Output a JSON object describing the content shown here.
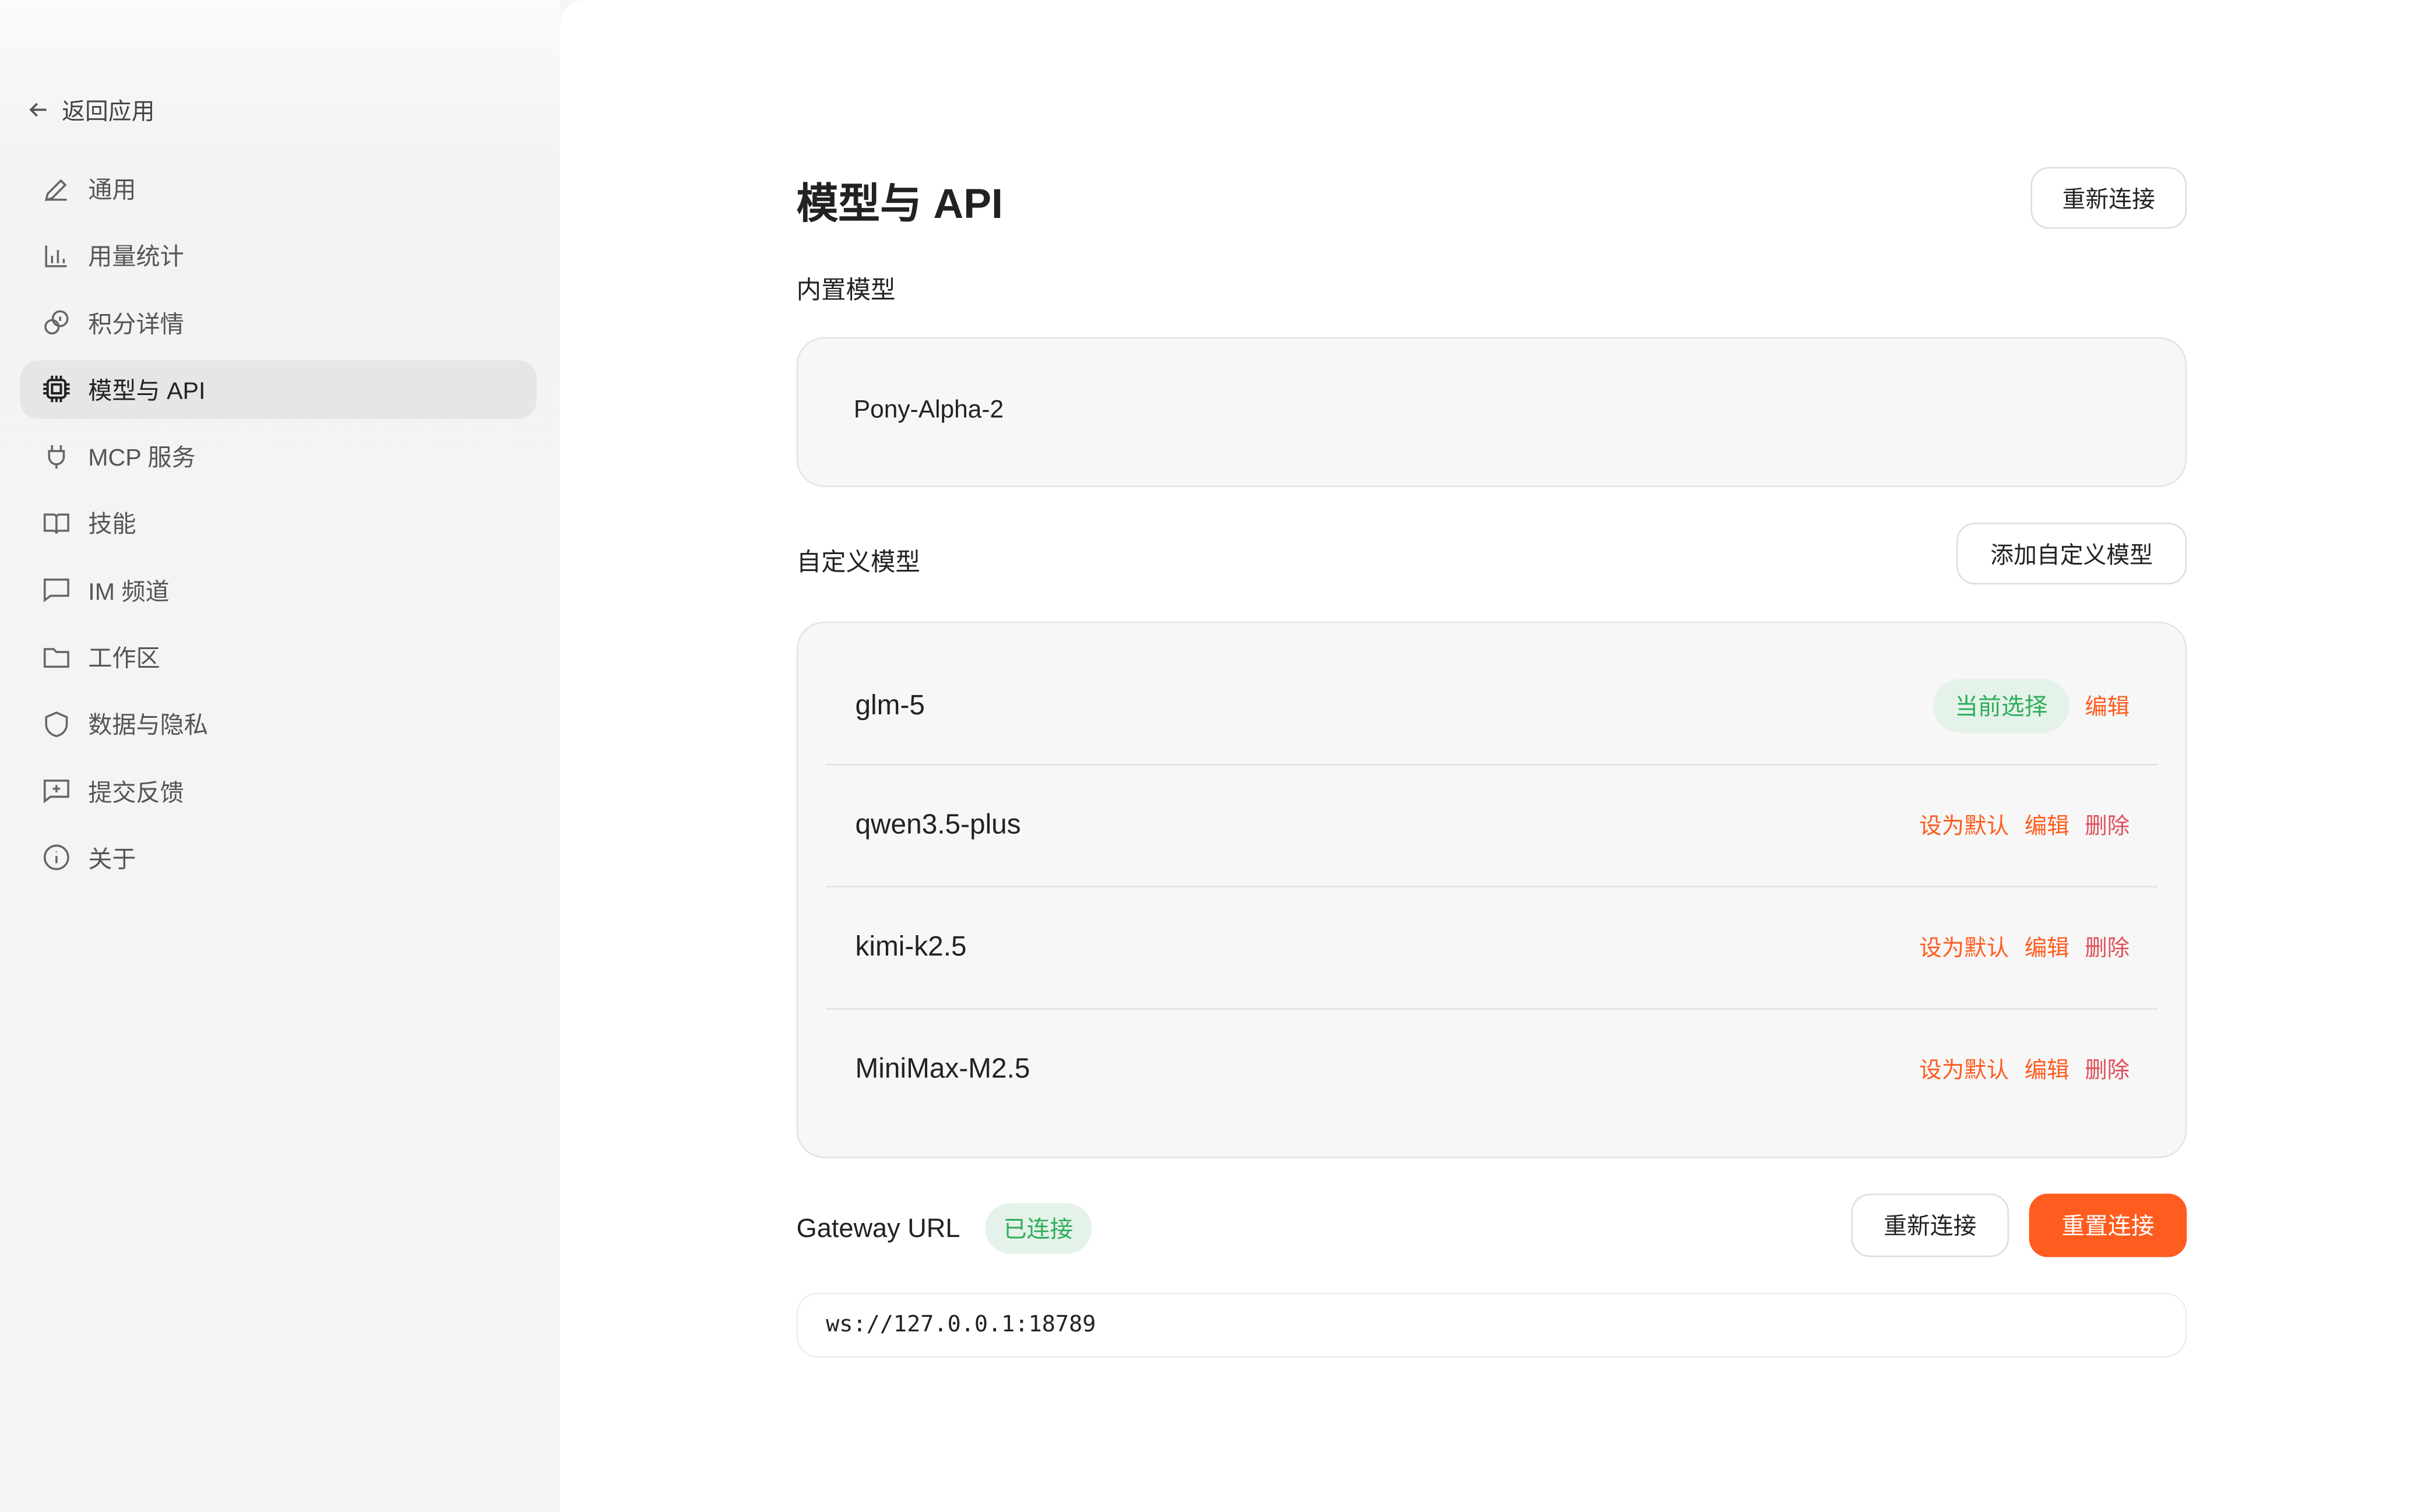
{
  "sidebar": {
    "back_label": "返回应用",
    "items": [
      {
        "label": "通用",
        "icon": "pencil-icon"
      },
      {
        "label": "用量统计",
        "icon": "bar-chart-icon"
      },
      {
        "label": "积分详情",
        "icon": "coins-icon"
      },
      {
        "label": "模型与 API",
        "icon": "cpu-icon",
        "active": true
      },
      {
        "label": "MCP 服务",
        "icon": "plug-icon"
      },
      {
        "label": "技能",
        "icon": "book-icon"
      },
      {
        "label": "IM 频道",
        "icon": "message-icon"
      },
      {
        "label": "工作区",
        "icon": "folder-icon"
      },
      {
        "label": "数据与隐私",
        "icon": "shield-icon"
      },
      {
        "label": "提交反馈",
        "icon": "feedback-icon"
      },
      {
        "label": "关于",
        "icon": "info-icon"
      }
    ]
  },
  "main": {
    "title": "模型与 API",
    "reconnect_top": "重新连接",
    "builtin": {
      "heading": "内置模型",
      "model": "Pony-Alpha-2"
    },
    "custom": {
      "heading": "自定义模型",
      "add_button": "添加自定义模型",
      "models": [
        {
          "name": "glm-5",
          "badge": "当前选择",
          "edit": "编辑"
        },
        {
          "name": "qwen3.5-plus",
          "set_default": "设为默认",
          "edit": "编辑",
          "delete": "删除"
        },
        {
          "name": "kimi-k2.5",
          "set_default": "设为默认",
          "edit": "编辑",
          "delete": "删除"
        },
        {
          "name": "MiniMax-M2.5",
          "set_default": "设为默认",
          "edit": "编辑",
          "delete": "删除"
        }
      ]
    },
    "gateway": {
      "label": "Gateway URL",
      "status": "已连接",
      "reconnect": "重新连接",
      "reset": "重置连接",
      "url": "ws://127.0.0.1:18789"
    }
  },
  "colors": {
    "accent": "#ff5c1f",
    "success": "#2fae5a",
    "danger": "#e0505a"
  }
}
